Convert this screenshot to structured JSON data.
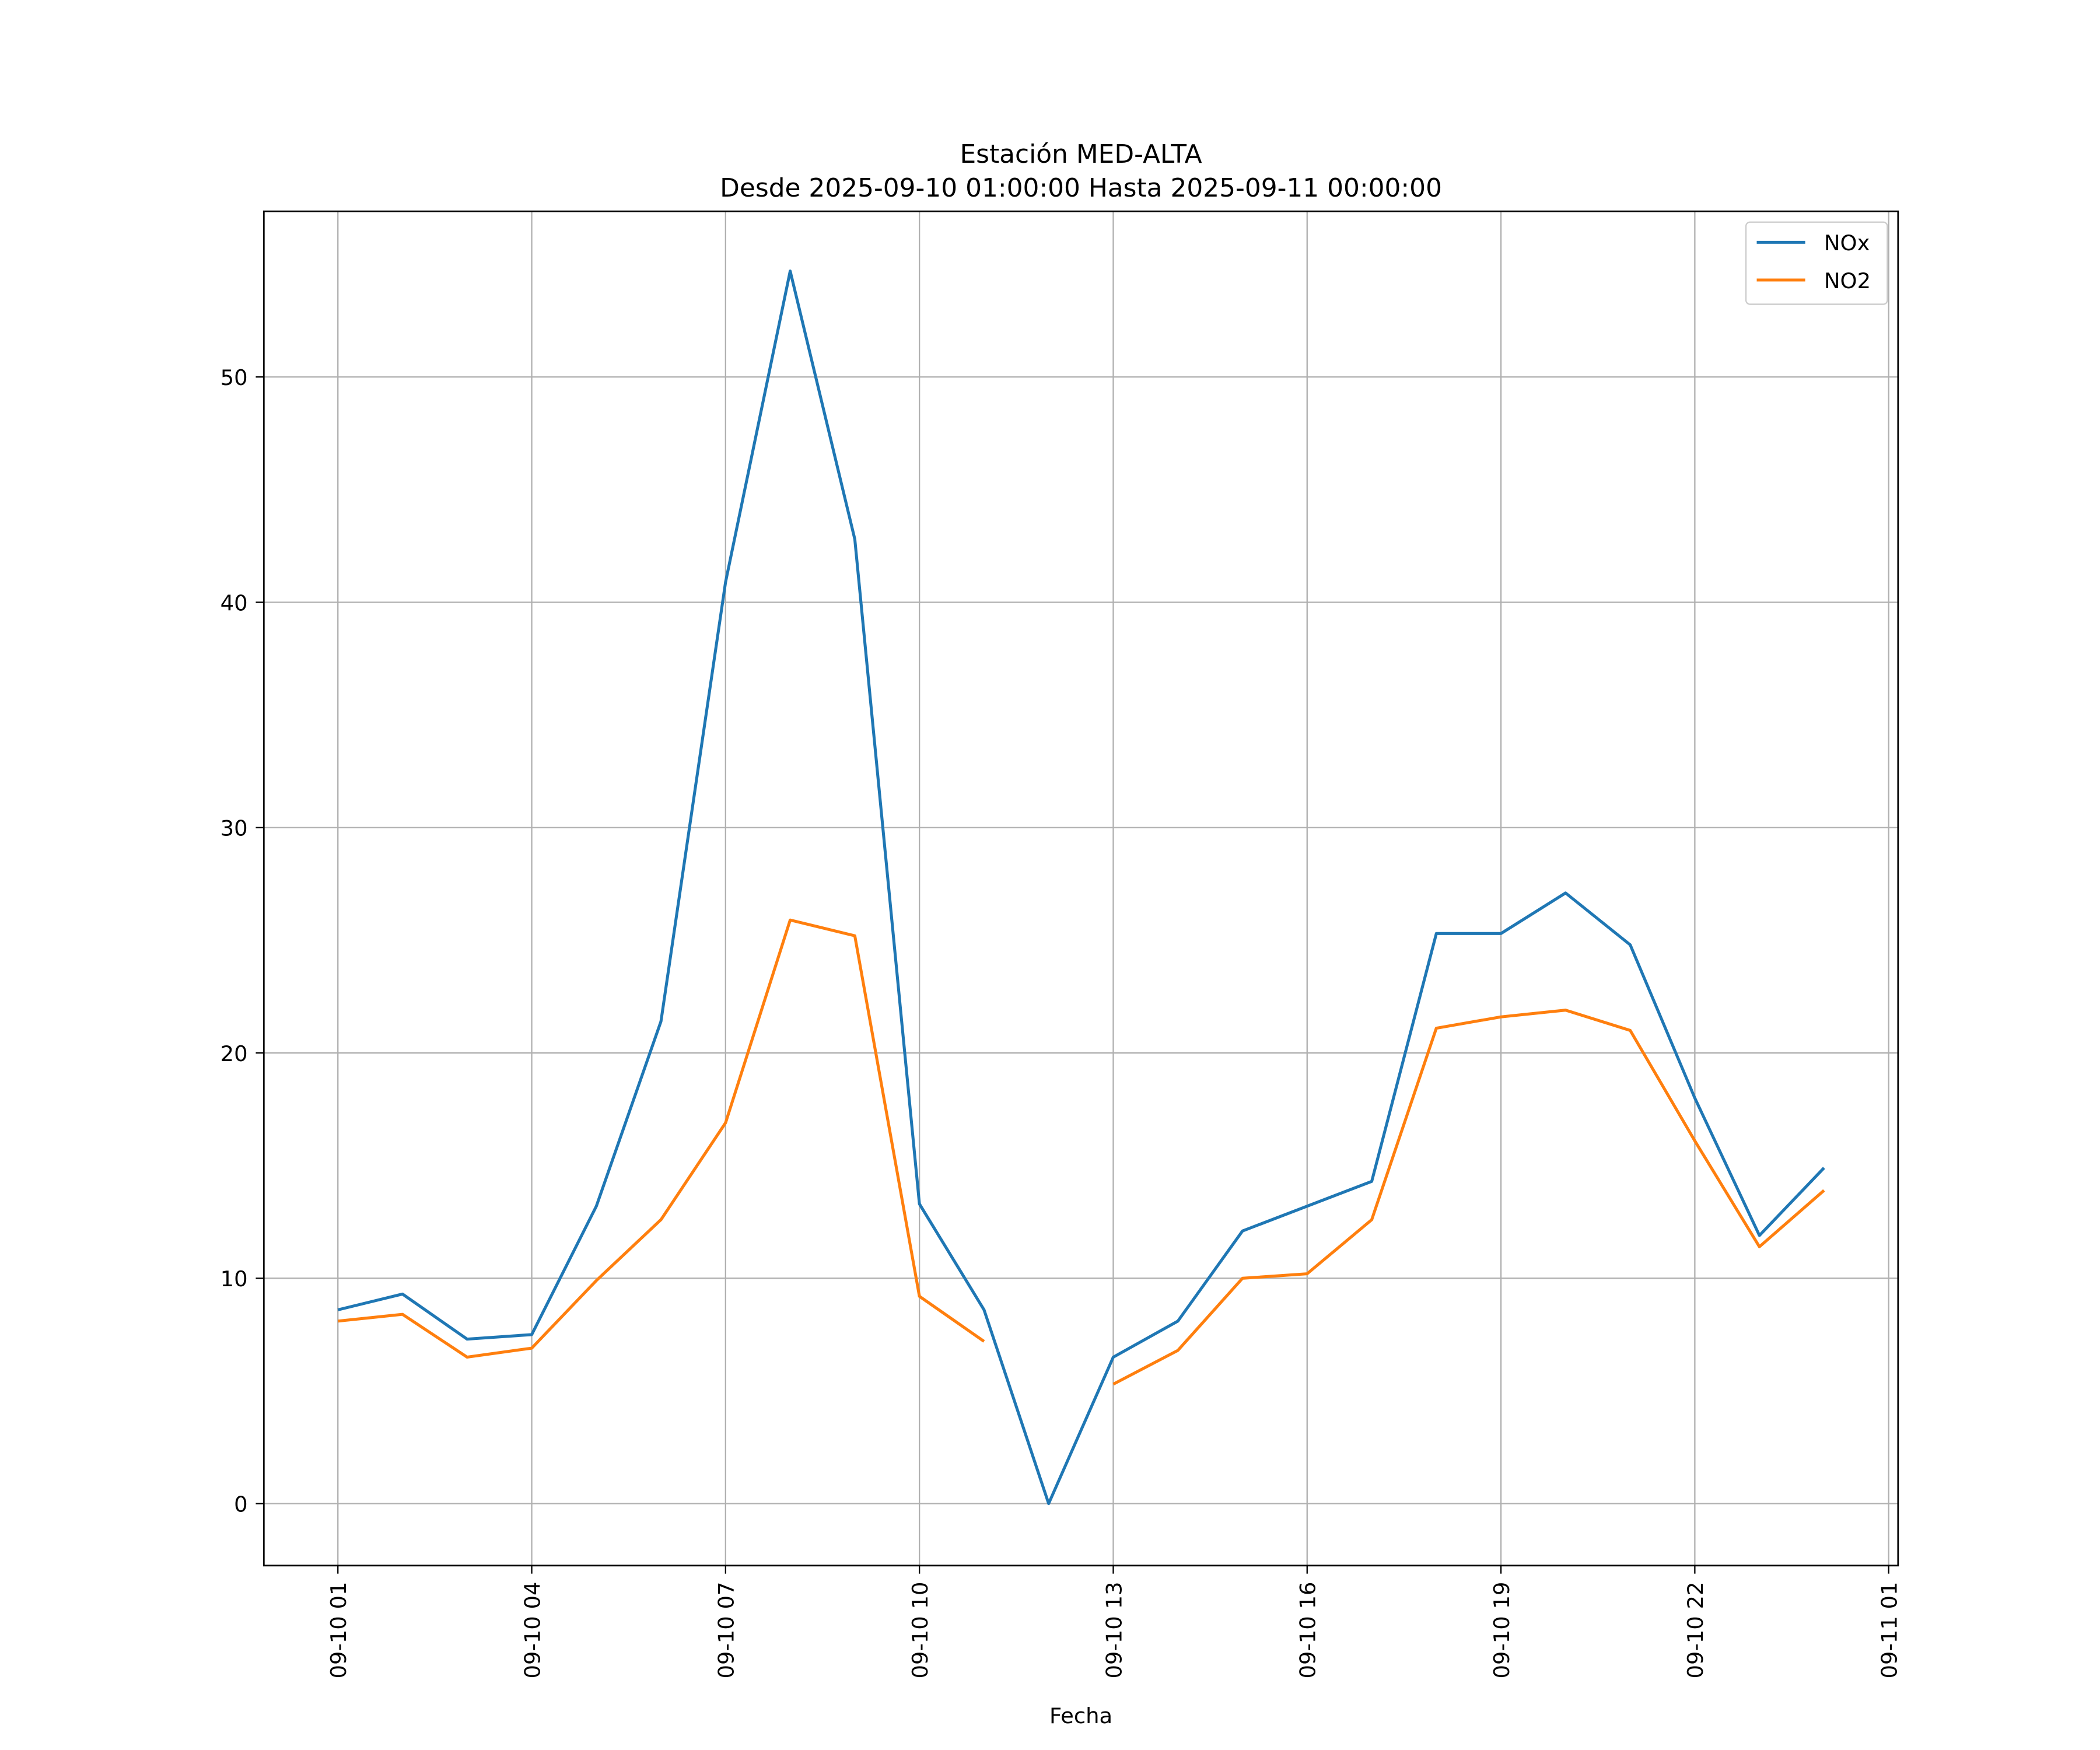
{
  "chart_data": {
    "type": "line",
    "title": "Estación MED-ALTA",
    "subtitle": "Desde 2025-09-10 01:00:00 Hasta 2025-09-11 00:00:00",
    "xlabel": "Fecha",
    "ylabel": "",
    "x": [
      "2025-09-10 01:00",
      "2025-09-10 02:00",
      "2025-09-10 03:00",
      "2025-09-10 04:00",
      "2025-09-10 05:00",
      "2025-09-10 06:00",
      "2025-09-10 07:00",
      "2025-09-10 08:00",
      "2025-09-10 09:00",
      "2025-09-10 10:00",
      "2025-09-10 11:00",
      "2025-09-10 12:00",
      "2025-09-10 13:00",
      "2025-09-10 14:00",
      "2025-09-10 15:00",
      "2025-09-10 16:00",
      "2025-09-10 17:00",
      "2025-09-10 18:00",
      "2025-09-10 19:00",
      "2025-09-10 20:00",
      "2025-09-10 21:00",
      "2025-09-10 22:00",
      "2025-09-10 23:00",
      "2025-09-11 00:00"
    ],
    "series": [
      {
        "name": "NOx",
        "color": "#1f77b4",
        "values": [
          8.6,
          9.3,
          7.3,
          7.5,
          13.2,
          21.4,
          40.9,
          54.7,
          42.8,
          13.3,
          8.6,
          0.0,
          6.5,
          8.1,
          12.1,
          13.2,
          14.3,
          25.3,
          25.3,
          27.1,
          24.8,
          18.0,
          11.9,
          14.9
        ]
      },
      {
        "name": "NO2",
        "color": "#ff7f0e",
        "values": [
          8.1,
          8.4,
          6.5,
          6.9,
          9.9,
          12.6,
          16.9,
          25.9,
          25.2,
          9.2,
          7.2,
          null,
          5.3,
          6.8,
          10.0,
          10.2,
          12.6,
          21.1,
          21.6,
          21.9,
          21.0,
          16.1,
          11.4,
          13.9
        ]
      }
    ],
    "xticks": [
      "09-10 01",
      "09-10 04",
      "09-10 07",
      "09-10 10",
      "09-10 13",
      "09-10 16",
      "09-10 19",
      "09-10 22",
      "09-11 01"
    ],
    "yticks": [
      0,
      10,
      20,
      30,
      40,
      50
    ],
    "xlim": [
      "2025-09-10 00:00 -0.14h",
      "2025-09-11 01:07"
    ],
    "ylim": [
      -2.75,
      57.35
    ],
    "grid": true,
    "legend": "top-right"
  }
}
